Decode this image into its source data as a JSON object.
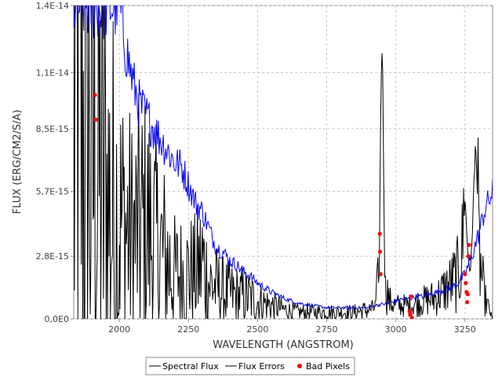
{
  "chart_data": {
    "type": "line",
    "title": "",
    "xlabel": "WAVELENGTH (ANGSTROM)",
    "ylabel": "FLUX (ERG/CM2/S/A)",
    "xlim": [
      1835,
      3350
    ],
    "ylim": [
      0,
      1.4e-14
    ],
    "x_ticks": [
      2000,
      2250,
      2500,
      2750,
      3000,
      3250
    ],
    "x_tick_labels": [
      "2000",
      "2250",
      "2500",
      "2750",
      "3000",
      "3250"
    ],
    "y_ticks": [
      0,
      2.8e-15,
      5.7e-15,
      8.5e-15,
      1.1e-14,
      1.4e-14
    ],
    "y_tick_labels": [
      "0,0E0",
      "2,8E-15",
      "5,7E-15",
      "8,5E-15",
      "1,1E-14",
      "1,4E-14"
    ],
    "grid": true,
    "legend_position": "bottom",
    "series": [
      {
        "name": "Spectral Flux",
        "color": "#000000",
        "style": "noisy-line",
        "x": [
          1835,
          1850,
          1875,
          1900,
          1925,
          1950,
          1975,
          2000,
          2025,
          2050,
          2075,
          2100,
          2125,
          2150,
          2175,
          2200,
          2225,
          2250,
          2275,
          2300,
          2325,
          2350,
          2375,
          2400,
          2425,
          2450,
          2475,
          2500,
          2550,
          2600,
          2650,
          2700,
          2750,
          2800,
          2850,
          2900,
          2925,
          2940,
          2945,
          2950,
          2955,
          2960,
          2975,
          3000,
          3025,
          3050,
          3075,
          3100,
          3125,
          3150,
          3175,
          3200,
          3225,
          3240,
          3250,
          3260,
          3270,
          3280,
          3290,
          3300,
          3320,
          3350
        ],
        "y": [
          9e-15,
          9e-15,
          8e-15,
          7e-15,
          6.5e-15,
          5.5e-15,
          4.5e-15,
          4.5e-15,
          4e-15,
          3.5e-15,
          4e-15,
          4e-15,
          3.5e-15,
          3e-15,
          2.5e-15,
          2e-15,
          2e-15,
          2e-15,
          2e-15,
          2.5e-15,
          1.6e-15,
          1.4e-15,
          1.2e-15,
          1.1e-15,
          1e-15,
          1e-15,
          9e-16,
          8e-16,
          6e-16,
          4e-16,
          3e-16,
          3e-16,
          3e-16,
          3e-16,
          3e-16,
          4e-16,
          5e-16,
          2e-15,
          9e-15,
          1.28e-14,
          8e-15,
          2e-15,
          8e-16,
          6e-16,
          6e-16,
          6e-16,
          7e-16,
          8e-16,
          9e-16,
          1e-15,
          1.3e-15,
          1.6e-15,
          2e-15,
          3e-15,
          5.5e-15,
          3e-15,
          2e-15,
          5e-15,
          8.2e-15,
          3e-15,
          1e-15,
          0
        ]
      },
      {
        "name": "Flux Errors",
        "color": "#0000ff",
        "style": "line",
        "x": [
          1835,
          1850,
          1875,
          1900,
          1925,
          1950,
          1975,
          2000,
          2025,
          2050,
          2075,
          2100,
          2125,
          2150,
          2175,
          2200,
          2225,
          2250,
          2275,
          2300,
          2325,
          2350,
          2375,
          2400,
          2425,
          2450,
          2475,
          2500,
          2550,
          2600,
          2650,
          2700,
          2750,
          2800,
          2850,
          2900,
          2925,
          2950,
          2975,
          3000,
          3025,
          3050,
          3075,
          3100,
          3125,
          3150,
          3175,
          3200,
          3225,
          3250,
          3275,
          3300,
          3325,
          3350
        ],
        "y": [
          1.4e-14,
          1.4e-14,
          1.4e-14,
          1.4e-14,
          1.4e-14,
          1.4e-14,
          1.4e-14,
          1.4e-14,
          1.2e-14,
          1.05e-14,
          9.5e-15,
          9e-15,
          8.5e-15,
          8e-15,
          7.5e-15,
          7e-15,
          6.8e-15,
          6e-15,
          5.2e-15,
          4.8e-15,
          4e-15,
          3.2e-15,
          3e-15,
          2.6e-15,
          2.4e-15,
          2.1e-15,
          1.9e-15,
          1.6e-15,
          1.2e-15,
          9e-16,
          7e-16,
          6e-16,
          5e-16,
          5e-16,
          5e-16,
          5e-16,
          6e-16,
          6.5e-16,
          7e-16,
          8e-16,
          9e-16,
          9e-16,
          1e-15,
          1e-15,
          1.1e-15,
          1.2e-15,
          1.3e-15,
          1.4e-15,
          1.6e-15,
          2e-15,
          2.8e-15,
          3.8e-15,
          5e-15,
          5.6e-15
        ]
      },
      {
        "name": "Bad Pixels",
        "color": "#ff0000",
        "style": "points",
        "x": [
          1912,
          1915,
          2942,
          2943,
          2945,
          3050,
          3052,
          3055,
          3058,
          3250,
          3253,
          3256,
          3258,
          3260,
          3262,
          3265
        ],
        "y": [
          1e-14,
          8.9e-15,
          3.8e-15,
          3e-15,
          2e-15,
          3.5e-16,
          2e-16,
          1e-15,
          5e-17,
          2e-15,
          1.6e-15,
          1.2e-15,
          7.5e-16,
          1.1e-15,
          2.8e-15,
          3.3e-15
        ]
      }
    ]
  }
}
